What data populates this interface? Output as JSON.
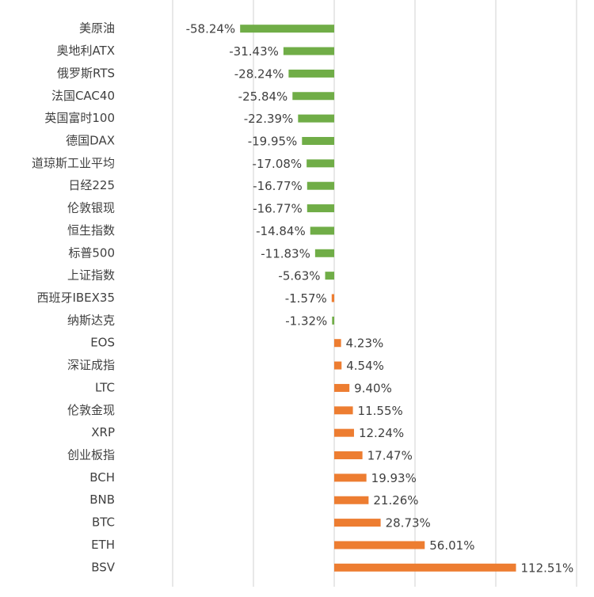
{
  "chart_data": {
    "type": "barh",
    "categories": [
      "美原油",
      "奥地利ATX",
      "俄罗斯RTS",
      "法国CAC40",
      "英国富时100",
      "德国DAX",
      "道琼斯工业平均",
      "日经225",
      "伦敦银现",
      "恒生指数",
      "标普500",
      "上证指数",
      "西班牙IBEX35",
      "纳斯达克",
      "EOS",
      "深证成指",
      "LTC",
      "伦敦金现",
      "XRP",
      "创业板指",
      "BCH",
      "BNB",
      "BTC",
      "ETH",
      "BSV"
    ],
    "values": [
      -58.24,
      -31.43,
      -28.24,
      -25.84,
      -22.39,
      -19.95,
      -17.08,
      -16.77,
      -16.77,
      -14.84,
      -11.83,
      -5.63,
      -1.57,
      -1.32,
      4.23,
      4.54,
      9.4,
      11.55,
      12.24,
      17.47,
      19.93,
      21.26,
      28.73,
      56.01,
      112.51
    ],
    "value_labels": [
      "-58.24%",
      "-31.43%",
      "-28.24%",
      "-25.84%",
      "-22.39%",
      "-19.95%",
      "-17.08%",
      "-16.77%",
      "-16.77%",
      "-14.84%",
      "-11.83%",
      "-5.63%",
      "-1.57%",
      "-1.32%",
      "4.23%",
      "4.54%",
      "9.40%",
      "11.55%",
      "12.24%",
      "17.47%",
      "19.93%",
      "21.26%",
      "28.73%",
      "56.01%",
      "112.51%"
    ],
    "colors": [
      "#70ad47",
      "#70ad47",
      "#70ad47",
      "#70ad47",
      "#70ad47",
      "#70ad47",
      "#70ad47",
      "#70ad47",
      "#70ad47",
      "#70ad47",
      "#70ad47",
      "#70ad47",
      "#ed7d31",
      "#70ad47",
      "#ed7d31",
      "#ed7d31",
      "#ed7d31",
      "#ed7d31",
      "#ed7d31",
      "#ed7d31",
      "#ed7d31",
      "#ed7d31",
      "#ed7d31",
      "#ed7d31",
      "#ed7d31"
    ],
    "xlim": [
      -100,
      150
    ],
    "xticks": [
      -100,
      -50,
      0,
      50,
      100,
      150
    ],
    "grid": true
  }
}
